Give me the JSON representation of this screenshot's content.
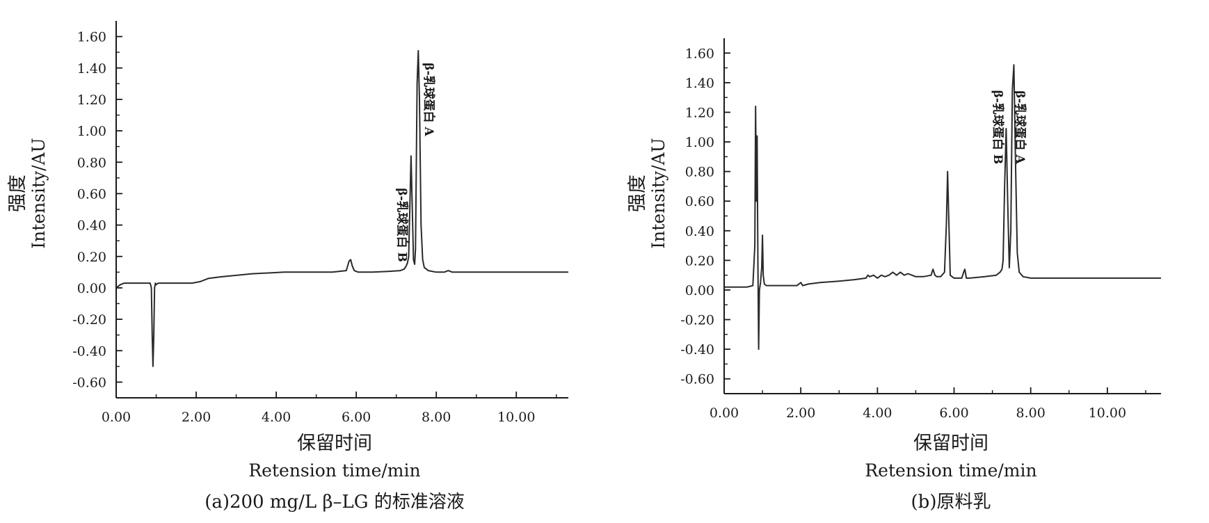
{
  "chart_data": [
    {
      "type": "line",
      "caption": "(a)200 mg/L β–LG 的标准溶液",
      "xlabel_zh": "保留时间",
      "xlabel_en": "Retension time/min",
      "ylabel_zh": "强度",
      "ylabel_en": "Intensity/AU",
      "xlim": [
        0,
        11.3
      ],
      "ylim": [
        -0.7,
        1.7
      ],
      "xticks": [
        0,
        2,
        4,
        6,
        8,
        10
      ],
      "xtick_labels": [
        "0.00",
        "2.00",
        "4.00",
        "6.00",
        "8.00",
        "10.00"
      ],
      "yticks": [
        -0.6,
        -0.4,
        -0.2,
        0,
        0.2,
        0.4,
        0.6,
        0.8,
        1.0,
        1.2,
        1.4,
        1.6
      ],
      "ytick_labels": [
        "-0.60",
        "-0.40",
        "-0.20",
        "0.00",
        "0.20",
        "0.40",
        "0.60",
        "0.80",
        "1.00",
        "1.20",
        "1.40",
        "1.60"
      ],
      "grid": false,
      "series": [
        {
          "x": [
            0.0,
            0.1,
            0.2,
            0.3,
            0.5,
            0.7,
            0.85,
            0.88,
            0.9,
            0.92,
            0.94,
            0.96,
            0.98,
            1.0,
            1.05,
            1.1,
            1.3,
            1.6,
            1.9,
            2.1,
            2.3,
            2.6,
            3.0,
            3.4,
            3.8,
            4.2,
            4.6,
            5.0,
            5.4,
            5.75,
            5.82,
            5.86,
            5.9,
            5.95,
            6.05,
            6.4,
            6.8,
            7.1,
            7.2,
            7.25,
            7.28,
            7.31,
            7.34,
            7.37,
            7.4,
            7.43,
            7.46,
            7.48,
            7.52,
            7.55,
            7.58,
            7.62,
            7.66,
            7.7,
            7.8,
            8.0,
            8.2,
            8.3,
            8.4,
            8.6,
            9.0,
            9.5,
            10.0,
            10.5,
            11.0,
            11.3
          ],
          "y": [
            0.0,
            0.02,
            0.03,
            0.03,
            0.03,
            0.03,
            0.03,
            0.0,
            -0.3,
            -0.5,
            -0.3,
            0.0,
            0.03,
            0.02,
            0.03,
            0.03,
            0.03,
            0.03,
            0.03,
            0.04,
            0.06,
            0.07,
            0.08,
            0.09,
            0.095,
            0.1,
            0.1,
            0.1,
            0.1,
            0.11,
            0.17,
            0.18,
            0.14,
            0.11,
            0.1,
            0.1,
            0.105,
            0.11,
            0.12,
            0.14,
            0.16,
            0.2,
            0.52,
            0.84,
            0.5,
            0.18,
            0.15,
            0.25,
            1.3,
            1.51,
            1.2,
            0.4,
            0.18,
            0.13,
            0.11,
            0.1,
            0.1,
            0.11,
            0.1,
            0.1,
            0.1,
            0.1,
            0.1,
            0.1,
            0.1,
            0.1
          ]
        }
      ],
      "annotations": [
        {
          "text": "β-乳球蛋白 B",
          "x": 7.05,
          "y": 0.4
        },
        {
          "text": "β-乳球蛋白 A",
          "x": 7.72,
          "y": 1.2
        }
      ]
    },
    {
      "type": "line",
      "caption": "(b)原料乳",
      "xlabel_zh": "保留时间",
      "xlabel_en": "Retension time/min",
      "ylabel_zh": "强度",
      "ylabel_en": "Intensity/AU",
      "xlim": [
        0,
        11.4
      ],
      "ylim": [
        -0.7,
        1.7
      ],
      "xticks": [
        0,
        2,
        4,
        6,
        8,
        10
      ],
      "xtick_labels": [
        "0.00",
        "2.00",
        "4.00",
        "6.00",
        "8.00",
        "10.00"
      ],
      "yticks": [
        -0.6,
        -0.4,
        -0.2,
        0,
        0.2,
        0.4,
        0.6,
        0.8,
        1.0,
        1.2,
        1.4,
        1.6
      ],
      "ytick_labels": [
        "-0.60",
        "-0.40",
        "-0.20",
        "0.00",
        "0.20",
        "0.40",
        "0.60",
        "0.80",
        "1.00",
        "1.20",
        "1.40",
        "1.60"
      ],
      "grid": false,
      "series": [
        {
          "x": [
            0.0,
            0.3,
            0.6,
            0.75,
            0.8,
            0.82,
            0.84,
            0.86,
            0.88,
            0.9,
            0.92,
            0.95,
            0.98,
            1.0,
            1.02,
            1.05,
            1.1,
            1.3,
            1.6,
            1.9,
            2.0,
            2.05,
            2.2,
            2.5,
            3.0,
            3.4,
            3.7,
            3.75,
            3.8,
            3.9,
            4.0,
            4.1,
            4.2,
            4.3,
            4.4,
            4.5,
            4.6,
            4.7,
            4.8,
            4.9,
            5.0,
            5.2,
            5.4,
            5.45,
            5.5,
            5.55,
            5.65,
            5.75,
            5.8,
            5.83,
            5.86,
            5.9,
            6.0,
            6.2,
            6.25,
            6.28,
            6.32,
            6.4,
            6.8,
            7.1,
            7.2,
            7.25,
            7.28,
            7.32,
            7.36,
            7.4,
            7.44,
            7.48,
            7.52,
            7.56,
            7.6,
            7.65,
            7.7,
            7.8,
            8.0,
            8.5,
            9.0,
            9.5,
            10.0,
            10.5,
            11.0,
            11.4
          ],
          "y": [
            0.02,
            0.02,
            0.02,
            0.03,
            0.3,
            1.24,
            0.6,
            1.04,
            0.2,
            -0.4,
            0.0,
            0.05,
            0.15,
            0.37,
            0.1,
            0.04,
            0.03,
            0.03,
            0.03,
            0.03,
            0.05,
            0.03,
            0.04,
            0.05,
            0.06,
            0.07,
            0.08,
            0.1,
            0.09,
            0.1,
            0.08,
            0.1,
            0.09,
            0.1,
            0.12,
            0.1,
            0.12,
            0.1,
            0.11,
            0.1,
            0.09,
            0.09,
            0.1,
            0.14,
            0.1,
            0.09,
            0.09,
            0.12,
            0.45,
            0.8,
            0.5,
            0.1,
            0.08,
            0.08,
            0.12,
            0.14,
            0.08,
            0.08,
            0.09,
            0.1,
            0.12,
            0.14,
            0.2,
            0.7,
            1.09,
            0.6,
            0.15,
            0.4,
            1.35,
            1.52,
            0.9,
            0.25,
            0.12,
            0.09,
            0.08,
            0.08,
            0.08,
            0.08,
            0.08,
            0.08,
            0.08,
            0.08
          ]
        }
      ],
      "annotations": [
        {
          "text": "β-乳球蛋白 B",
          "x": 7.04,
          "y": 1.1
        },
        {
          "text": "β-乳球蛋白 A",
          "x": 7.62,
          "y": 1.1
        }
      ]
    }
  ]
}
